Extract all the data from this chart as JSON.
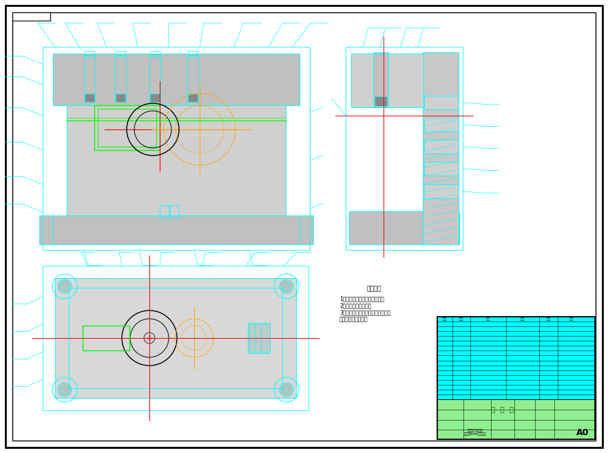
{
  "bg_color": "#ffffff",
  "cyan": "#00ffff",
  "red": "#ff0000",
  "green": "#00ff00",
  "orange": "#ffa500",
  "black": "#000000",
  "gray1": "#c0c0c0",
  "gray2": "#d0d0d0",
  "gray3": "#b0b0b0",
  "gray4": "#c8c8c8",
  "gray5": "#d8d8d8",
  "drawing_number": "A0",
  "tech_req_title": "技术要求",
  "tech_req_1": "1、装配时不允许磕碰、划伤；",
  "tech_req_2": "2、油面不允许渗漏；",
  "tech_req_3": "3、装配应对照零部件的主要尺寸及",
  "tech_req_4": "相关标准进行检查。",
  "title_text": "夹  具  图",
  "col_headers": [
    "序号",
    "代号",
    "名称",
    "数量",
    "材料",
    "备注"
  ]
}
